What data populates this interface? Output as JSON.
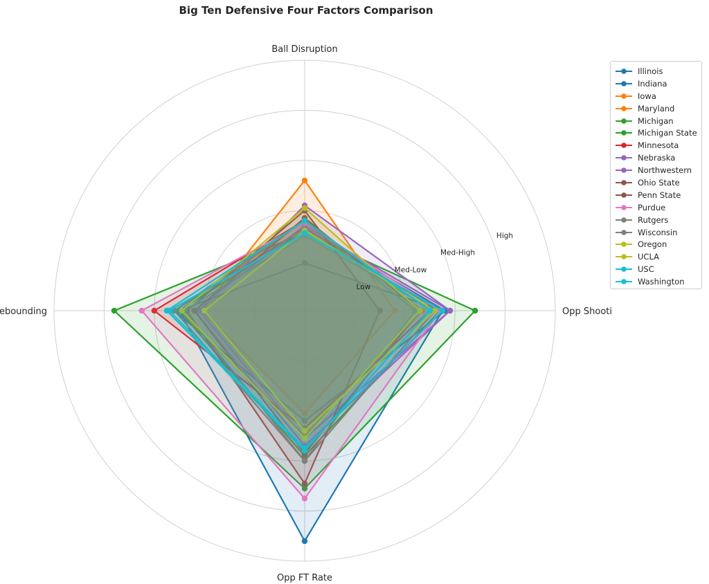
{
  "chart_data": {
    "type": "radar",
    "title": "Big Ten Defensive Four Factors Comparison",
    "axes": [
      "Ball Disruption",
      "Opp Shooting",
      "Opp FT Rate",
      "Def Rebounding"
    ],
    "scale_labels": [
      "Low",
      "Med-Low",
      "Med-High",
      "High"
    ],
    "scale": [
      0,
      5
    ],
    "grid": true,
    "legend_position": "right",
    "series": [
      {
        "name": "Illinois",
        "color": "#1f77b4",
        "values": [
          0.95,
          2.75,
          4.6,
          2.5
        ]
      },
      {
        "name": "Indiana",
        "color": "#1f77b4",
        "values": [
          1.65,
          2.8,
          2.2,
          2.6
        ]
      },
      {
        "name": "Iowa",
        "color": "#ff7f0e",
        "values": [
          2.6,
          1.8,
          2.05,
          2.05
        ]
      },
      {
        "name": "Maryland",
        "color": "#ff7f0e",
        "values": [
          1.8,
          2.35,
          2.5,
          2.5
        ]
      },
      {
        "name": "Michigan",
        "color": "#2ca02c",
        "values": [
          1.55,
          3.4,
          3.55,
          3.8
        ]
      },
      {
        "name": "Michigan State",
        "color": "#2ca02c",
        "values": [
          1.6,
          2.7,
          2.9,
          2.5
        ]
      },
      {
        "name": "Minnesota",
        "color": "#d62728",
        "values": [
          1.8,
          2.5,
          2.35,
          3.0
        ]
      },
      {
        "name": "Nebraska",
        "color": "#9467bd",
        "values": [
          2.1,
          2.9,
          2.55,
          2.1
        ]
      },
      {
        "name": "Northwestern",
        "color": "#9467bd",
        "values": [
          1.7,
          2.9,
          2.7,
          2.2
        ]
      },
      {
        "name": "Ohio State",
        "color": "#8c564b",
        "values": [
          2.0,
          1.5,
          3.45,
          2.35
        ]
      },
      {
        "name": "Penn State",
        "color": "#8c564b",
        "values": [
          1.85,
          2.3,
          2.85,
          2.2
        ]
      },
      {
        "name": "Purdue",
        "color": "#e377c2",
        "values": [
          1.75,
          2.7,
          3.75,
          3.25
        ]
      },
      {
        "name": "Rutgers",
        "color": "#7f7f7f",
        "values": [
          1.5,
          2.6,
          3.0,
          2.4
        ]
      },
      {
        "name": "Wisconsin",
        "color": "#7f7f7f",
        "values": [
          1.8,
          2.2,
          3.0,
          2.6
        ]
      },
      {
        "name": "Oregon",
        "color": "#bcbd22",
        "values": [
          2.05,
          2.3,
          2.55,
          2.45
        ]
      },
      {
        "name": "UCLA",
        "color": "#bcbd22",
        "values": [
          1.6,
          2.6,
          2.4,
          2.0
        ]
      },
      {
        "name": "USC",
        "color": "#17becf",
        "values": [
          1.55,
          2.75,
          2.75,
          2.7
        ]
      },
      {
        "name": "Washington",
        "color": "#17becf",
        "values": [
          1.8,
          2.5,
          2.8,
          2.75
        ]
      }
    ]
  }
}
